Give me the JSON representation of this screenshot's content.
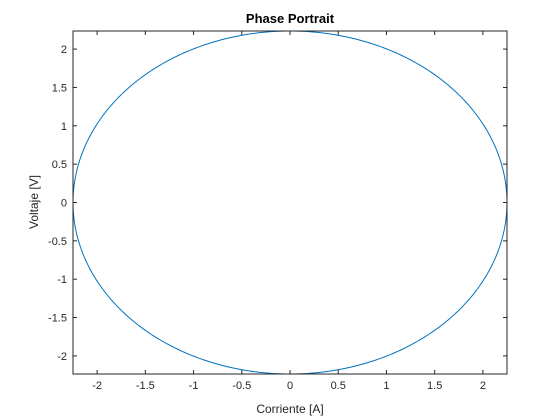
{
  "chart_data": {
    "type": "line",
    "title": "Phase Portrait",
    "xlabel": "Corriente [A]",
    "ylabel": "Voltaje [V]",
    "xlim": [
      -2.25,
      2.25
    ],
    "ylim": [
      -2.236,
      2.236
    ],
    "xticks": [
      -2,
      -1.5,
      -1,
      -0.5,
      0,
      0.5,
      1,
      1.5,
      2
    ],
    "xtick_labels": [
      "-2",
      "-1.5",
      "-1",
      "-0.5",
      "0",
      "0.5",
      "1",
      "1.5",
      "2"
    ],
    "yticks": [
      -2,
      -1.5,
      -1,
      -0.5,
      0,
      0.5,
      1,
      1.5,
      2
    ],
    "ytick_labels": [
      "-2",
      "-1.5",
      "-1",
      "-0.5",
      "0",
      "0.5",
      "1",
      "1.5",
      "2"
    ],
    "grid": false,
    "legend": "none",
    "series": [
      {
        "color": "#0072bd",
        "shape": "ellipse",
        "center": [
          0,
          0
        ],
        "x_amplitude": 2.25,
        "y_amplitude": 2.236
      }
    ]
  }
}
